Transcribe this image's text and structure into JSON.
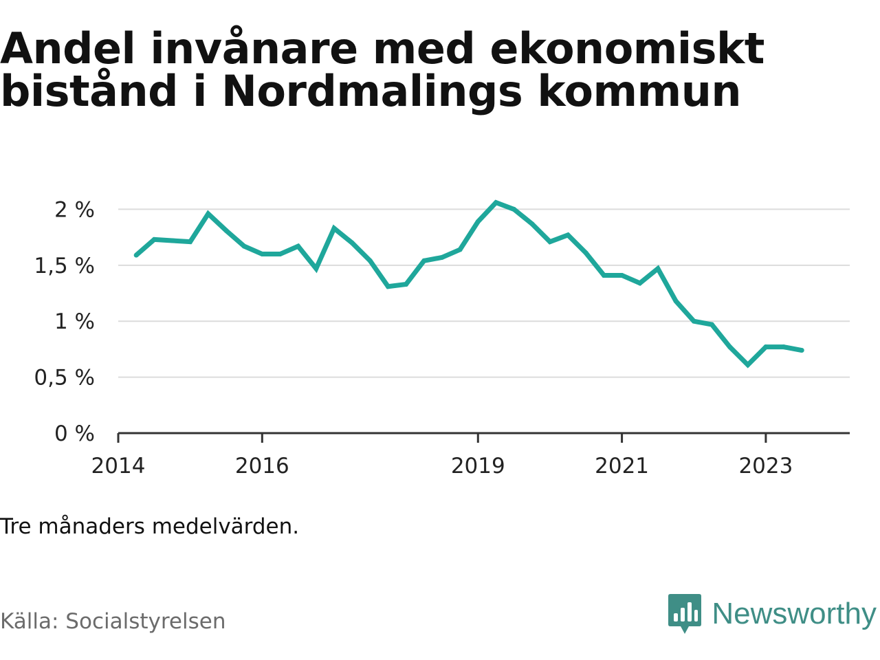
{
  "title": "Andel invånare med ekonomiskt bistånd i Nordmalings kommun",
  "note": "Tre månaders medelvärden.",
  "source": "Källa: Socialstyrelsen",
  "brand": {
    "name": "Newsworthy",
    "icon": "newsworthy-logo-icon",
    "color": "#3f8e86"
  },
  "chart_data": {
    "type": "line",
    "title": "Andel invånare med ekonomiskt bistånd i Nordmalings kommun",
    "xlabel": "",
    "ylabel": "",
    "x_tick_labels": [
      "2014",
      "2016",
      "2019",
      "2021",
      "2023"
    ],
    "y_tick_labels": [
      "0 %",
      "0,5 %",
      "1 %",
      "1,5 %",
      "2 %"
    ],
    "y_ticks": [
      0,
      0.5,
      1,
      1.5,
      2
    ],
    "ylim": [
      0,
      2.15
    ],
    "xlim": [
      "2014-01",
      "2024-03"
    ],
    "grid": true,
    "legend": "none",
    "line_color": "#1fa79b",
    "series": [
      {
        "x": [
          "2014-04",
          "2014-07",
          "2014-10",
          "2015-01",
          "2015-04",
          "2015-07",
          "2015-10",
          "2016-01",
          "2016-04",
          "2016-07",
          "2016-10",
          "2017-01",
          "2017-04",
          "2017-07",
          "2017-10",
          "2018-01",
          "2018-04",
          "2018-07",
          "2018-10",
          "2019-01",
          "2019-04",
          "2019-07",
          "2019-10",
          "2020-01",
          "2020-04",
          "2020-07",
          "2020-10",
          "2021-01",
          "2021-04",
          "2021-07",
          "2021-10",
          "2022-01",
          "2022-04",
          "2022-07",
          "2022-10",
          "2023-01",
          "2023-04",
          "2023-07"
        ],
        "values": [
          1.59,
          1.73,
          1.72,
          1.71,
          1.96,
          1.81,
          1.67,
          1.6,
          1.6,
          1.67,
          1.47,
          1.83,
          1.7,
          1.54,
          1.31,
          1.33,
          1.54,
          1.57,
          1.64,
          1.89,
          2.06,
          2.0,
          1.87,
          1.71,
          1.77,
          1.61,
          1.41,
          1.41,
          1.34,
          1.47,
          1.18,
          1.0,
          0.97,
          0.77,
          0.61,
          0.77,
          0.77,
          0.74
        ]
      }
    ]
  }
}
